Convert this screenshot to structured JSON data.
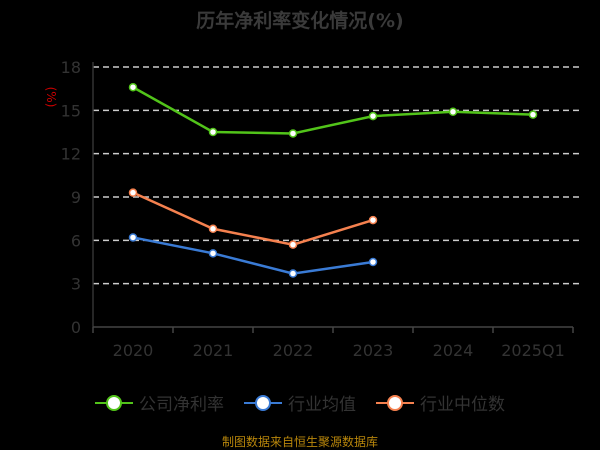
{
  "chart_data": {
    "type": "line",
    "title": "历年净利率变化情况(%)",
    "ylabel": "(%)",
    "categories": [
      "2020",
      "2021",
      "2022",
      "2023",
      "2024",
      "2025Q1"
    ],
    "ylim": [
      0,
      18
    ],
    "yticks": [
      0,
      3,
      6,
      9,
      12,
      15,
      18
    ],
    "grid": true,
    "legend_position": "bottom",
    "series": [
      {
        "name": "公司净利率",
        "color": "#52c41a",
        "values": [
          16.6,
          13.5,
          13.4,
          14.6,
          14.9,
          14.7
        ]
      },
      {
        "name": "行业均值",
        "color": "#3a7bd5",
        "values": [
          6.2,
          5.1,
          3.7,
          4.5,
          null,
          null
        ]
      },
      {
        "name": "行业中位数",
        "color": "#f5814f",
        "values": [
          9.3,
          6.8,
          5.7,
          7.4,
          null,
          null
        ]
      }
    ]
  },
  "source": "制图数据来自恒生聚源数据库"
}
